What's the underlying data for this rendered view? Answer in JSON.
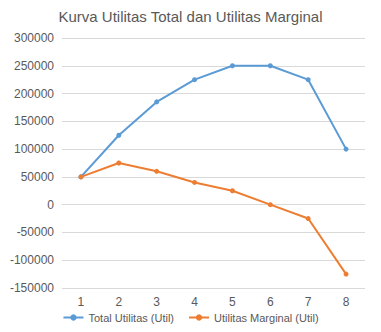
{
  "chart_data": {
    "type": "line",
    "title": "Kurva Utilitas Total dan Utilitas Marginal",
    "categories": [
      "1",
      "2",
      "3",
      "4",
      "5",
      "6",
      "7",
      "8"
    ],
    "series": [
      {
        "name": "Total Utilitas (Util)",
        "color": "#5b9bd5",
        "values": [
          50000,
          125000,
          185000,
          225000,
          250000,
          250000,
          225000,
          100000
        ]
      },
      {
        "name": "Utilitas Marginal (Util)",
        "color": "#ed7d31",
        "values": [
          50000,
          75000,
          60000,
          40000,
          25000,
          0,
          -25000,
          -125000
        ]
      }
    ],
    "ylim": [
      -150000,
      300000
    ],
    "yticks": [
      -150000,
      -100000,
      -50000,
      0,
      50000,
      100000,
      150000,
      200000,
      250000,
      300000
    ],
    "grid": true,
    "legend": "bottom",
    "marker": "circle"
  }
}
